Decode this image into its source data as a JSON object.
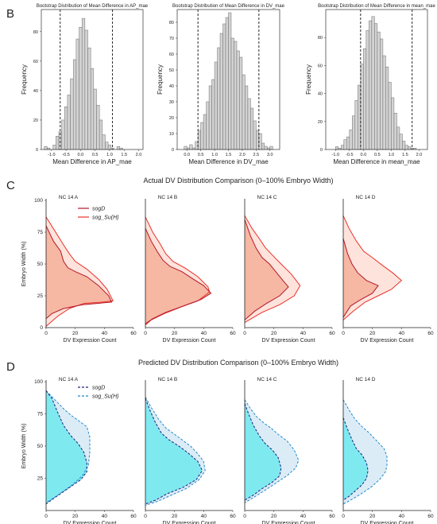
{
  "panels": {
    "B": {
      "letter": "B"
    },
    "C": {
      "letter": "C",
      "title": "Actual DV Distribution Comparison (0–100% Embryo Width)"
    },
    "D": {
      "letter": "D",
      "title": "Predicted DV Distribution Comparison (0–100% Embryo Width)"
    }
  },
  "colors": {
    "hist_fill": "#d3d3d3",
    "hist_edge": "#6e6e6e",
    "actual_sogD": "#b2182b",
    "actual_sogSu": "#e8312a",
    "actual_fill_inner": "#f6b7a3",
    "actual_fill_outer": "#fde3db",
    "pred_sogD": "#1a237e",
    "pred_sogSu": "#1f8bd0",
    "pred_fill_inner": "#7fe9f0",
    "pred_fill_outer": "#dcecf6"
  },
  "chart_data": [
    {
      "type": "bar",
      "title": "Bootstrap Distribution of Mean Difference in AP_mae",
      "xlabel": "Mean Difference in AP_mae",
      "ylabel": "Frequency",
      "xlim": [
        -1.35,
        2.15
      ],
      "ylim": [
        0,
        95
      ],
      "xticks": [
        -1.0,
        -0.5,
        0.0,
        0.5,
        1.0,
        1.5,
        2.0
      ],
      "xtick_labels": [
        "-1.0",
        "-0.5",
        "0.0",
        "0.5",
        "1.0",
        "1.5",
        "2.0"
      ],
      "yticks": [
        0,
        20,
        40,
        60,
        80
      ],
      "bin_start": -1.25,
      "bin_width": 0.1,
      "values": [
        2,
        1,
        0,
        3,
        9,
        12,
        20,
        29,
        37,
        48,
        61,
        75,
        83,
        89,
        81,
        69,
        55,
        41,
        30,
        20,
        10,
        5,
        3,
        1,
        0,
        2,
        1
      ],
      "vlines": [
        -0.7,
        1.1
      ]
    },
    {
      "type": "bar",
      "title": "Bootstrap Distribution of Mean Difference in DV_mae",
      "xlabel": "Mean Difference in DV_mae",
      "ylabel": "Frequency",
      "xlim": [
        -0.35,
        3.35
      ],
      "ylim": [
        0,
        88
      ],
      "xticks": [
        0.0,
        0.5,
        1.0,
        1.5,
        2.0,
        2.5,
        3.0
      ],
      "xtick_labels": [
        "0.0",
        "0.5",
        "1.0",
        "1.5",
        "2.0",
        "2.5",
        "3.0"
      ],
      "yticks": [
        0,
        10,
        20,
        30,
        40,
        50,
        60,
        70,
        80
      ],
      "bin_start": -0.1,
      "bin_width": 0.1,
      "values": [
        2,
        1,
        3,
        1,
        5,
        12,
        17,
        22,
        30,
        40,
        44,
        55,
        64,
        73,
        79,
        83,
        86,
        70,
        68,
        62,
        58,
        47,
        40,
        32,
        26,
        18,
        12,
        10,
        4,
        2,
        1,
        2
      ],
      "vlines": [
        0.4,
        2.6
      ]
    },
    {
      "type": "bar",
      "title": "Bootstrap Distribution of Mean Difference in mean_mae",
      "xlabel": "Mean Difference in mean_mae",
      "ylabel": "Frequency",
      "xlim": [
        -1.35,
        2.3
      ],
      "ylim": [
        0,
        100
      ],
      "xticks": [
        -1.0,
        -0.5,
        0.0,
        0.5,
        1.0,
        1.5,
        2.0
      ],
      "xtick_labels": [
        "-1.0",
        "-0.5",
        "0.0",
        "0.5",
        "1.0",
        "1.5",
        "2.0"
      ],
      "yticks": [
        0,
        20,
        40,
        60,
        80
      ],
      "bin_start": -1.0,
      "bin_width": 0.1,
      "values": [
        2,
        1,
        3,
        7,
        9,
        14,
        24,
        35,
        46,
        61,
        72,
        85,
        92,
        95,
        90,
        84,
        79,
        67,
        59,
        48,
        37,
        26,
        16,
        11,
        6,
        3,
        2,
        1,
        1
      ],
      "vlines": [
        -0.1,
        1.75
      ]
    },
    {
      "type": "line",
      "panel": "C",
      "xlabel": "DV Expression Count",
      "ylabel": "Embryo Width (%)",
      "xlim": [
        0,
        60
      ],
      "ylim": [
        0,
        100
      ],
      "xticks": [
        0,
        20,
        40,
        60
      ],
      "yticks": [
        0,
        25,
        50,
        75,
        100
      ],
      "legend": [
        "sogD",
        "sog_Su(H)"
      ],
      "legend_placement": "top-left of first subplot",
      "subplots": [
        {
          "title": "NC 14 A",
          "sogD": [
            [
              0,
              80
            ],
            [
              5,
              68
            ],
            [
              10,
              60
            ],
            [
              12,
              52
            ],
            [
              15,
              47
            ],
            [
              20,
              44
            ],
            [
              28,
              40
            ],
            [
              36,
              33
            ],
            [
              43,
              25
            ],
            [
              45,
              20
            ],
            [
              25,
              18
            ],
            [
              12,
              15
            ],
            [
              4,
              11
            ],
            [
              0,
              7
            ]
          ],
          "sogSu": [
            [
              0,
              87
            ],
            [
              6,
              76
            ],
            [
              12,
              65
            ],
            [
              16,
              58
            ],
            [
              20,
              52
            ],
            [
              28,
              46
            ],
            [
              36,
              38
            ],
            [
              42,
              30
            ],
            [
              46,
              21
            ],
            [
              38,
              20
            ],
            [
              26,
              19
            ],
            [
              16,
              15
            ],
            [
              8,
              9
            ],
            [
              0,
              1
            ]
          ]
        },
        {
          "title": "NC 14 B",
          "sogD": [
            [
              0,
              78
            ],
            [
              4,
              68
            ],
            [
              8,
              60
            ],
            [
              12,
              53
            ],
            [
              17,
              48
            ],
            [
              25,
              44
            ],
            [
              33,
              38
            ],
            [
              40,
              33
            ],
            [
              45,
              27
            ],
            [
              38,
              22
            ],
            [
              26,
              17
            ],
            [
              14,
              12
            ],
            [
              5,
              7
            ],
            [
              0,
              3
            ]
          ],
          "sogSu": [
            [
              0,
              87
            ],
            [
              5,
              75
            ],
            [
              10,
              66
            ],
            [
              14,
              58
            ],
            [
              19,
              52
            ],
            [
              27,
              47
            ],
            [
              36,
              40
            ],
            [
              43,
              32
            ],
            [
              44,
              28
            ],
            [
              36,
              21
            ],
            [
              24,
              16
            ],
            [
              13,
              11
            ],
            [
              4,
              6
            ],
            [
              0,
              2
            ]
          ]
        },
        {
          "title": "NC 14 C",
          "sogD": [
            [
              0,
              85
            ],
            [
              4,
              72
            ],
            [
              8,
              62
            ],
            [
              12,
              55
            ],
            [
              17,
              50
            ],
            [
              22,
              43
            ],
            [
              27,
              36
            ],
            [
              30,
              32
            ],
            [
              24,
              25
            ],
            [
              15,
              19
            ],
            [
              7,
              13
            ],
            [
              0,
              6
            ]
          ],
          "sogSu": [
            [
              0,
              88
            ],
            [
              5,
              78
            ],
            [
              10,
              70
            ],
            [
              14,
              63
            ],
            [
              19,
              57
            ],
            [
              25,
              50
            ],
            [
              32,
              42
            ],
            [
              38,
              33
            ],
            [
              34,
              25
            ],
            [
              24,
              18
            ],
            [
              12,
              12
            ],
            [
              0,
              4
            ]
          ]
        },
        {
          "title": "NC 14 D",
          "sogD": [
            [
              0,
              70
            ],
            [
              3,
              58
            ],
            [
              6,
              50
            ],
            [
              10,
              43
            ],
            [
              16,
              37
            ],
            [
              24,
              33
            ],
            [
              20,
              27
            ],
            [
              12,
              22
            ],
            [
              5,
              17
            ],
            [
              0,
              8
            ]
          ],
          "sogSu": [
            [
              0,
              88
            ],
            [
              4,
              78
            ],
            [
              9,
              68
            ],
            [
              14,
              60
            ],
            [
              20,
              55
            ],
            [
              28,
              48
            ],
            [
              34,
              43
            ],
            [
              40,
              37
            ],
            [
              33,
              30
            ],
            [
              24,
              25
            ],
            [
              15,
              20
            ],
            [
              7,
              13
            ],
            [
              0,
              6
            ]
          ]
        }
      ]
    },
    {
      "type": "line",
      "panel": "D",
      "xlabel": "DV Expression Count",
      "ylabel": "Embryo Width (%)",
      "xlim": [
        0,
        60
      ],
      "ylim": [
        0,
        100
      ],
      "xticks": [
        0,
        20,
        40,
        60
      ],
      "yticks": [
        25,
        50,
        75,
        100
      ],
      "legend": [
        "sogD",
        "sog_Su(H)"
      ],
      "legend_placement": "top-left of first subplot",
      "subplots": [
        {
          "title": "NC 14 A",
          "sogD": [
            [
              0,
              93
            ],
            [
              4,
              87
            ],
            [
              8,
              76
            ],
            [
              12,
              66
            ],
            [
              17,
              58
            ],
            [
              22,
              52
            ],
            [
              26,
              45
            ],
            [
              28,
              37
            ],
            [
              28,
              30
            ],
            [
              24,
              24
            ],
            [
              15,
              17
            ],
            [
              6,
              10
            ],
            [
              0,
              5
            ]
          ],
          "sogSu": [
            [
              0,
              93
            ],
            [
              6,
              86
            ],
            [
              12,
              79
            ],
            [
              17,
              74
            ],
            [
              22,
              70
            ],
            [
              28,
              65
            ],
            [
              30,
              57
            ],
            [
              30,
              45
            ],
            [
              29,
              35
            ],
            [
              25,
              27
            ],
            [
              17,
              19
            ],
            [
              7,
              11
            ],
            [
              0,
              6
            ]
          ]
        },
        {
          "title": "NC 14 B",
          "sogD": [
            [
              0,
              87
            ],
            [
              3,
              78
            ],
            [
              7,
              68
            ],
            [
              11,
              60
            ],
            [
              16,
              55
            ],
            [
              23,
              50
            ],
            [
              30,
              44
            ],
            [
              36,
              38
            ],
            [
              39,
              31
            ],
            [
              35,
              24
            ],
            [
              26,
              18
            ],
            [
              15,
              13
            ],
            [
              7,
              8
            ],
            [
              0,
              5
            ]
          ],
          "sogSu": [
            [
              0,
              88
            ],
            [
              4,
              80
            ],
            [
              9,
              71
            ],
            [
              14,
              64
            ],
            [
              19,
              60
            ],
            [
              25,
              55
            ],
            [
              31,
              50
            ],
            [
              36,
              44
            ],
            [
              40,
              38
            ],
            [
              41,
              31
            ],
            [
              37,
              24
            ],
            [
              28,
              17
            ],
            [
              18,
              12
            ],
            [
              8,
              7
            ],
            [
              0,
              4
            ]
          ]
        },
        {
          "title": "NC 14 C",
          "sogD": [
            [
              0,
              83
            ],
            [
              3,
              74
            ],
            [
              6,
              66
            ],
            [
              10,
              58
            ],
            [
              14,
              52
            ],
            [
              19,
              47
            ],
            [
              23,
              41
            ],
            [
              25,
              33
            ],
            [
              24,
              27
            ],
            [
              19,
              22
            ],
            [
              12,
              17
            ],
            [
              6,
              12
            ],
            [
              0,
              8
            ]
          ],
          "sogSu": [
            [
              0,
              86
            ],
            [
              4,
              79
            ],
            [
              8,
              73
            ],
            [
              13,
              68
            ],
            [
              18,
              64
            ],
            [
              23,
              59
            ],
            [
              29,
              54
            ],
            [
              34,
              47
            ],
            [
              37,
              39
            ],
            [
              35,
              33
            ],
            [
              29,
              27
            ],
            [
              21,
              21
            ],
            [
              13,
              15
            ],
            [
              6,
              10
            ],
            [
              0,
              6
            ]
          ]
        },
        {
          "title": "NC 14 D",
          "sogD": [
            [
              0,
              72
            ],
            [
              3,
              63
            ],
            [
              6,
              55
            ],
            [
              9,
              48
            ],
            [
              13,
              43
            ],
            [
              16,
              37
            ],
            [
              17,
              31
            ],
            [
              16,
              25
            ],
            [
              13,
              20
            ],
            [
              8,
              15
            ],
            [
              4,
              11
            ],
            [
              0,
              8
            ]
          ],
          "sogSu": [
            [
              0,
              86
            ],
            [
              4,
              78
            ],
            [
              8,
              71
            ],
            [
              13,
              65
            ],
            [
              18,
              60
            ],
            [
              23,
              54
            ],
            [
              28,
              48
            ],
            [
              30,
              42
            ],
            [
              30,
              35
            ],
            [
              29,
              30
            ],
            [
              25,
              24
            ],
            [
              19,
              18
            ],
            [
              11,
              12
            ],
            [
              5,
              8
            ],
            [
              0,
              5
            ]
          ]
        }
      ]
    }
  ]
}
